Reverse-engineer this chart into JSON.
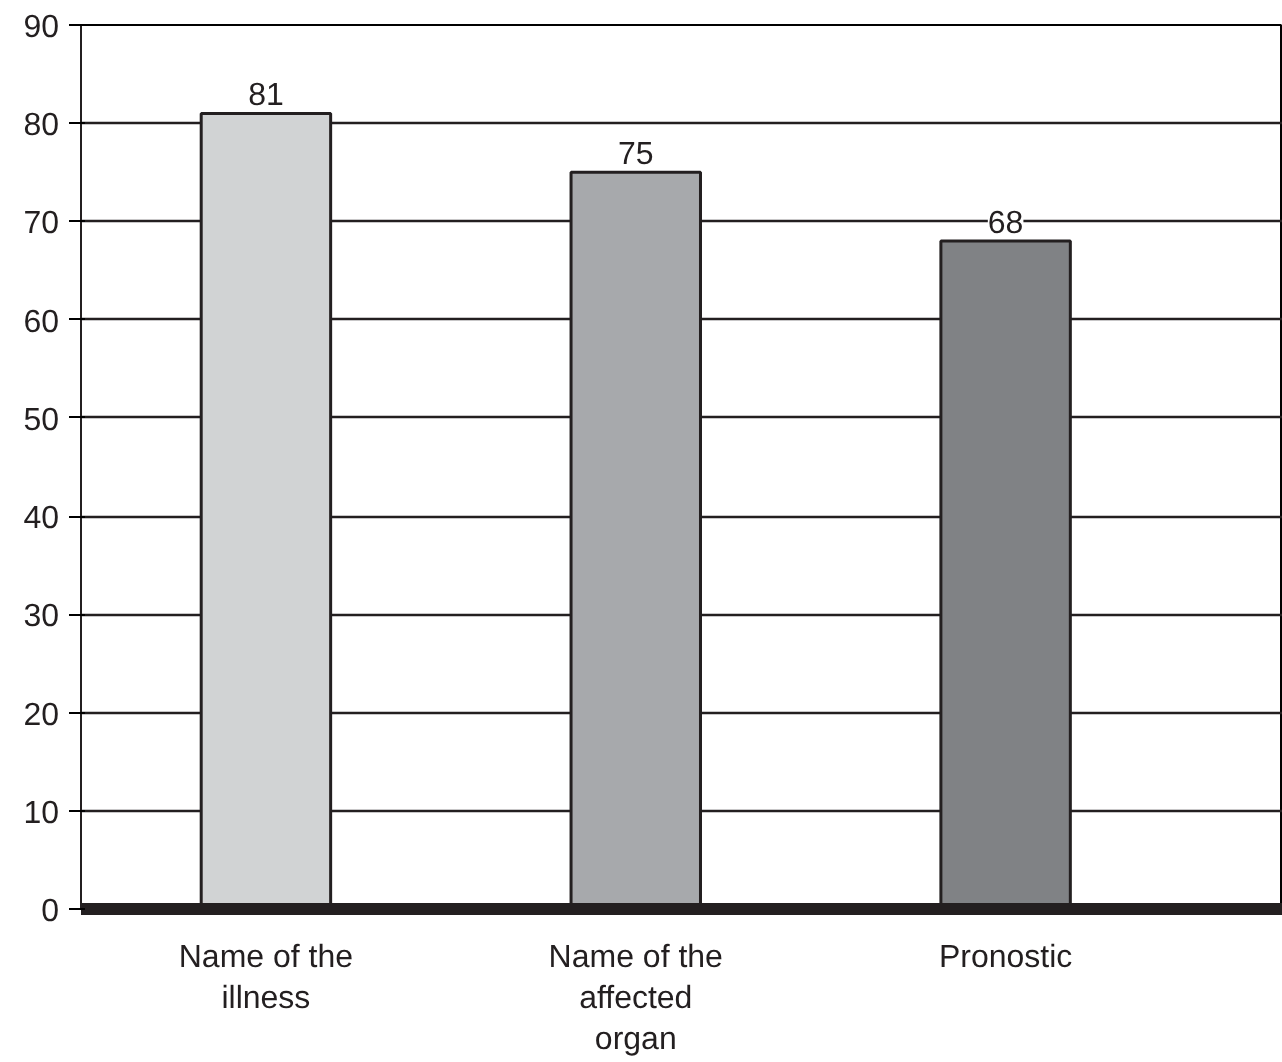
{
  "chart_data": {
    "type": "bar",
    "categories": [
      "Name of the illness",
      "Name of the affected organ",
      "Pronostic"
    ],
    "values": [
      81,
      75,
      68
    ],
    "colors": [
      "#d1d3d4",
      "#a7a9ac",
      "#808285"
    ],
    "ylim": [
      0,
      90
    ],
    "yticks": [
      0,
      10,
      20,
      30,
      40,
      50,
      60,
      70,
      80,
      90
    ],
    "grid": "y",
    "data_labels": true
  }
}
